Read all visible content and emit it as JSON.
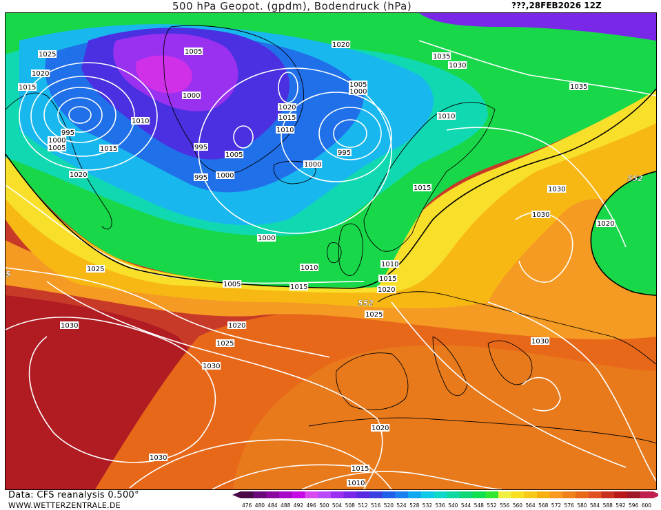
{
  "header": {
    "title": "500 hPa Geopot. (gpdm), Bodendruck (hPa)",
    "run": "???,28FEB2026 12Z"
  },
  "footer": {
    "source": "Data: CFS reanalysis 0.500°",
    "website": "WWW.WETTERZENTRALE.DE"
  },
  "legend": {
    "levels": [
      "476",
      "480",
      "484",
      "488",
      "492",
      "496",
      "500",
      "504",
      "508",
      "512",
      "516",
      "520",
      "524",
      "528",
      "532",
      "536",
      "540",
      "544",
      "548",
      "552",
      "556",
      "560",
      "564",
      "568",
      "572",
      "576",
      "580",
      "584",
      "588",
      "592",
      "596",
      "600"
    ],
    "colors": [
      "#4a0a4a",
      "#6a0a7a",
      "#8a0aa0",
      "#a80ac8",
      "#c60ae6",
      "#d84af0",
      "#b84af8",
      "#9a30f0",
      "#7a28e8",
      "#5a28e0",
      "#3a40e0",
      "#2060e8",
      "#1a80f0",
      "#10a8f0",
      "#10c8e8",
      "#10d8c8",
      "#10d8a0",
      "#10d878",
      "#10e050",
      "#30e830",
      "#f0f040",
      "#f8e020",
      "#f8c818",
      "#f8b010",
      "#f89820",
      "#f08018",
      "#e86818",
      "#e05020",
      "#c83020",
      "#b81818",
      "#a01828",
      "#c02050"
    ]
  },
  "labels": {
    "isobars": [
      "1025",
      "1020",
      "1015",
      "995",
      "1000",
      "1005",
      "1020",
      "1005",
      "1000",
      "1010",
      "1015",
      "995",
      "995",
      "1000",
      "1005",
      "1020",
      "1015",
      "1010",
      "1005",
      "1000",
      "995",
      "1000",
      "1020",
      "1035",
      "1030",
      "1010",
      "1035",
      "1015",
      "1030",
      "1030",
      "1020",
      "1000",
      "1010",
      "1010",
      "1015",
      "1020",
      "1025",
      "1025",
      "1005",
      "1015",
      "1020",
      "1025",
      "1030",
      "1030",
      "1030",
      "1020",
      "1015",
      "1010",
      "1030"
    ],
    "geopotential": [
      "552",
      "552",
      "5"
    ]
  }
}
